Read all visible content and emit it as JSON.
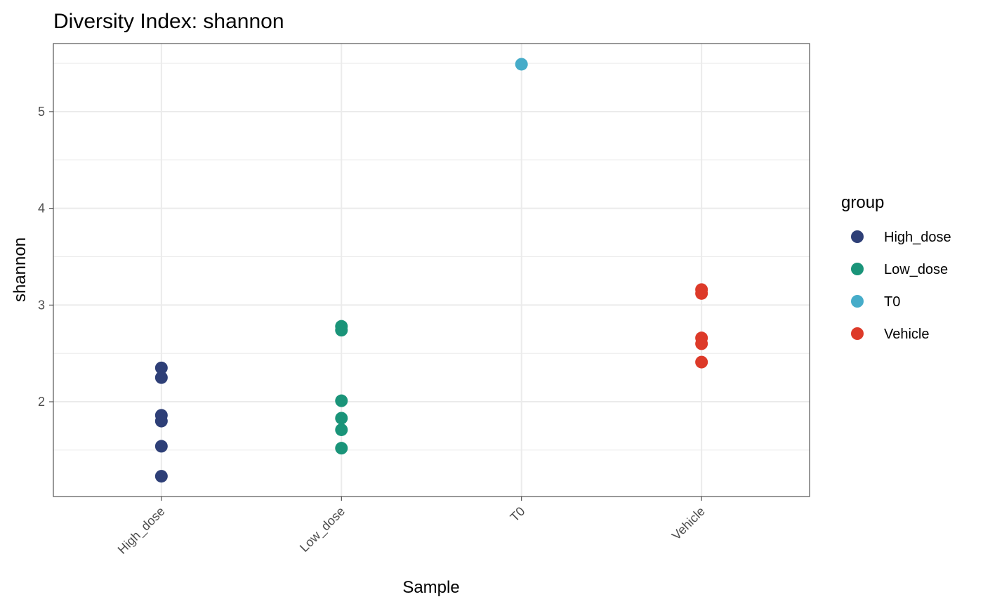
{
  "chart_data": {
    "type": "scatter",
    "title": "Diversity Index: shannon",
    "x_label": "Sample",
    "y_label": "shannon",
    "legend_title": "group",
    "categories": [
      "High_dose",
      "Low_dose",
      "T0",
      "Vehicle"
    ],
    "series": [
      {
        "name": "High_dose",
        "color": "#2e3f77",
        "x": [
          "High_dose",
          "High_dose",
          "High_dose",
          "High_dose",
          "High_dose",
          "High_dose"
        ],
        "values": [
          2.35,
          2.25,
          1.86,
          1.8,
          1.54,
          1.23
        ]
      },
      {
        "name": "Low_dose",
        "color": "#1a9479",
        "x": [
          "Low_dose",
          "Low_dose",
          "Low_dose",
          "Low_dose",
          "Low_dose",
          "Low_dose"
        ],
        "values": [
          2.78,
          2.74,
          2.01,
          1.83,
          1.71,
          1.52
        ]
      },
      {
        "name": "T0",
        "color": "#46acc9",
        "x": [
          "T0"
        ],
        "values": [
          5.49
        ]
      },
      {
        "name": "Vehicle",
        "color": "#dd3a29",
        "x": [
          "Vehicle",
          "Vehicle",
          "Vehicle",
          "Vehicle",
          "Vehicle"
        ],
        "values": [
          3.16,
          3.12,
          2.66,
          2.6,
          2.41
        ]
      }
    ],
    "ylim": [
      1.02,
      5.704
    ],
    "yticks": [
      2,
      3,
      4,
      5
    ],
    "minor_yticks": [
      1.5,
      2.5,
      3.5,
      4.5,
      5.5
    ],
    "grid": true,
    "legend_position": "right"
  }
}
